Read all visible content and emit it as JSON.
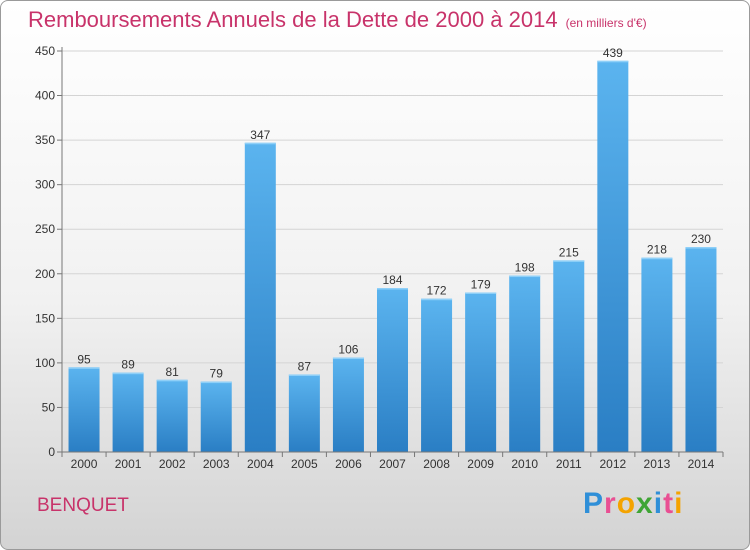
{
  "title": "Remboursements Annuels de la Dette de 2000 à 2014",
  "unit": "(en milliers d'€)",
  "commune": "BENQUET",
  "logo": {
    "letters": [
      "P",
      "r",
      "o",
      "x",
      "i",
      "t",
      "i"
    ],
    "colors": [
      "#2f8fd8",
      "#e94f93",
      "#f4a300",
      "#3fa535",
      "#2f8fd8",
      "#e94f93",
      "#f4a300"
    ]
  },
  "colors": {
    "bar": "#3f9fe0",
    "bar_light": "#5bb4ef",
    "bar_dark": "#2a79bf",
    "title": "#c8336a"
  },
  "chart_data": {
    "type": "bar",
    "title": "Remboursements Annuels de la Dette de 2000 à 2014",
    "xlabel": "",
    "ylabel": "",
    "categories": [
      "2000",
      "2001",
      "2002",
      "2003",
      "2004",
      "2005",
      "2006",
      "2007",
      "2008",
      "2009",
      "2010",
      "2011",
      "2012",
      "2013",
      "2014"
    ],
    "values": [
      95,
      89,
      81,
      79,
      347,
      87,
      106,
      184,
      172,
      179,
      198,
      215,
      439,
      218,
      230
    ],
    "ylim": [
      0,
      450
    ],
    "yticks": [
      0,
      50,
      100,
      150,
      200,
      250,
      300,
      350,
      400,
      450
    ],
    "grid": true
  }
}
